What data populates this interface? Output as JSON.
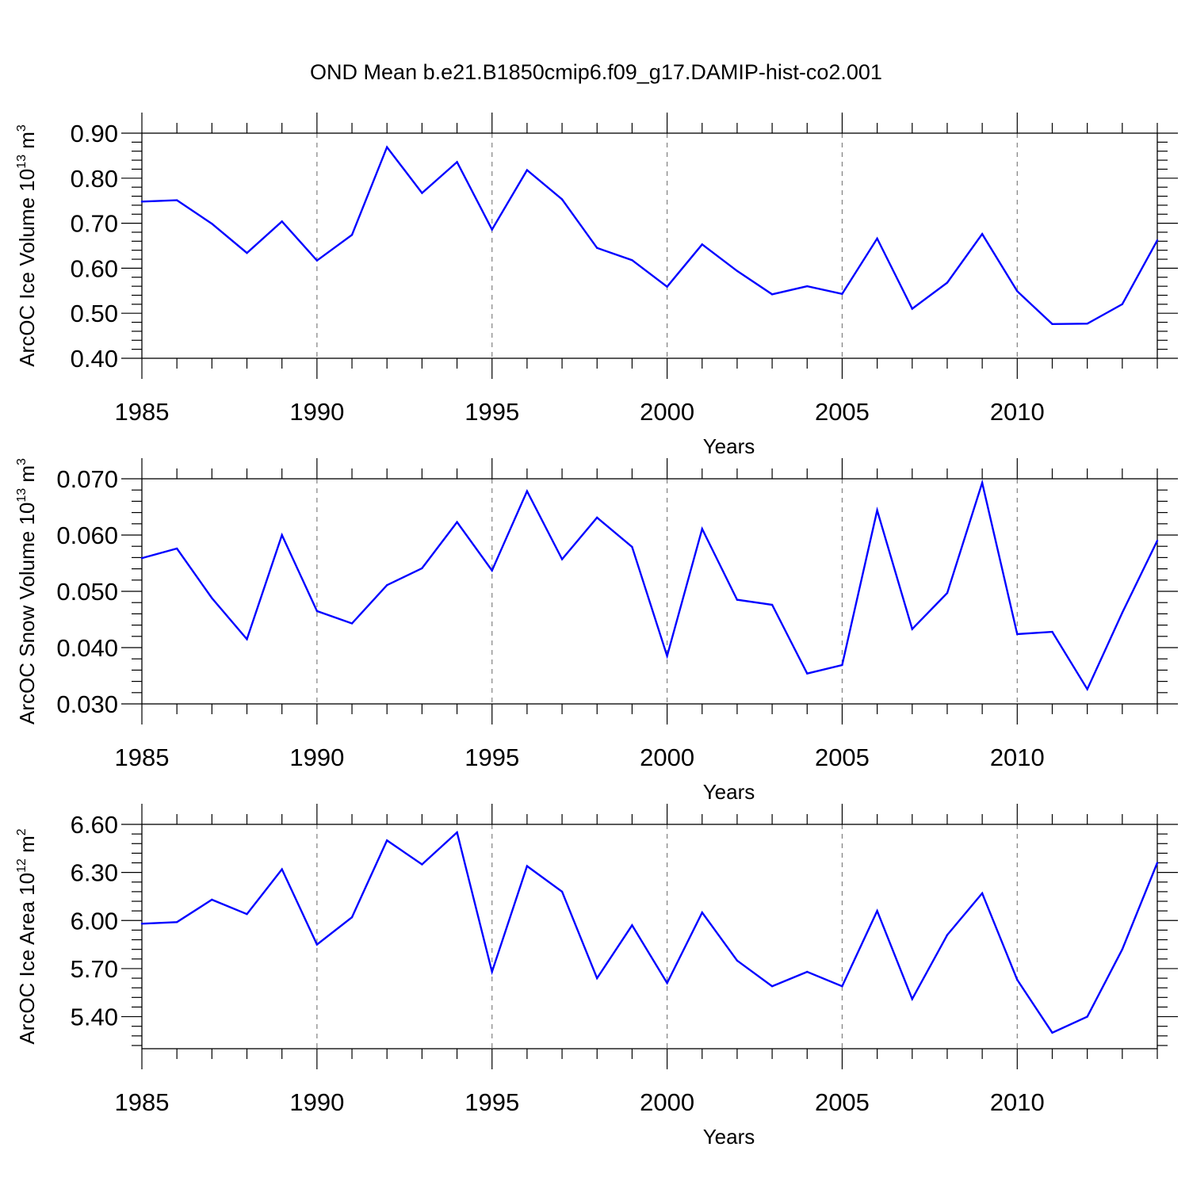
{
  "title": "OND Mean b.e21.B1850cmip6.f09_g17.DAMIP-hist-co2.001",
  "colors": {
    "line": "#0000ff",
    "axes": "#000000",
    "grid": "#808080",
    "background": "#ffffff"
  },
  "chart_data": [
    {
      "type": "line",
      "name": "ice-volume",
      "ylabel": {
        "main": "ArcOC Ice Volume 10",
        "sup": "13",
        "unit": " m",
        "unit_sup": "3"
      },
      "xlabel": "Years",
      "xlim": [
        1985,
        2014
      ],
      "ylim": [
        0.4,
        0.9
      ],
      "yticks": [
        0.4,
        0.5,
        0.6,
        0.7,
        0.8,
        0.9
      ],
      "ytick_labels": [
        "0.40",
        "0.50",
        "0.60",
        "0.70",
        "0.80",
        "0.90"
      ],
      "xticks": [
        1985,
        1990,
        1995,
        2000,
        2005,
        2010
      ],
      "xtick_labels": [
        "1985",
        "1990",
        "1995",
        "2000",
        "2005",
        "2010"
      ],
      "grid": "vertical dashed at major x ticks",
      "x": [
        1985,
        1986,
        1987,
        1988,
        1989,
        1990,
        1991,
        1992,
        1993,
        1994,
        1995,
        1996,
        1997,
        1998,
        1999,
        2000,
        2001,
        2002,
        2003,
        2004,
        2005,
        2006,
        2007,
        2008,
        2009,
        2010,
        2011,
        2012,
        2013,
        2014
      ],
      "values": [
        0.748,
        0.751,
        0.699,
        0.634,
        0.704,
        0.617,
        0.674,
        0.869,
        0.767,
        0.836,
        0.686,
        0.818,
        0.753,
        0.645,
        0.618,
        0.559,
        0.653,
        0.594,
        0.542,
        0.56,
        0.543,
        0.666,
        0.51,
        0.568,
        0.676,
        0.549,
        0.476,
        0.477,
        0.52,
        0.662
      ]
    },
    {
      "type": "line",
      "name": "snow-volume",
      "ylabel": {
        "main": "ArcOC Snow Volume 10",
        "sup": "13",
        "unit": " m",
        "unit_sup": "3"
      },
      "xlabel": "Years",
      "xlim": [
        1985,
        2014
      ],
      "ylim": [
        0.03,
        0.07
      ],
      "yticks": [
        0.03,
        0.04,
        0.05,
        0.06,
        0.07
      ],
      "ytick_labels": [
        "0.030",
        "0.040",
        "0.050",
        "0.060",
        "0.070"
      ],
      "xticks": [
        1985,
        1990,
        1995,
        2000,
        2005,
        2010
      ],
      "xtick_labels": [
        "1985",
        "1990",
        "1995",
        "2000",
        "2005",
        "2010"
      ],
      "grid": "vertical dashed at major x ticks",
      "x": [
        1985,
        1986,
        1987,
        1988,
        1989,
        1990,
        1991,
        1992,
        1993,
        1994,
        1995,
        1996,
        1997,
        1998,
        1999,
        2000,
        2001,
        2002,
        2003,
        2004,
        2005,
        2006,
        2007,
        2008,
        2009,
        2010,
        2011,
        2012,
        2013,
        2014
      ],
      "values": [
        0.0559,
        0.0576,
        0.0488,
        0.0415,
        0.06,
        0.0465,
        0.0443,
        0.0511,
        0.0541,
        0.0623,
        0.0537,
        0.0678,
        0.0557,
        0.0631,
        0.0579,
        0.0385,
        0.0611,
        0.0485,
        0.0476,
        0.0354,
        0.0369,
        0.0644,
        0.0433,
        0.0497,
        0.0693,
        0.0424,
        0.0428,
        0.0326,
        0.0462,
        0.059
      ]
    },
    {
      "type": "line",
      "name": "ice-area",
      "ylabel": {
        "main": "ArcOC Ice Area 10",
        "sup": "12",
        "unit": " m",
        "unit_sup": "2"
      },
      "xlabel": "Years",
      "xlim": [
        1985,
        2014
      ],
      "ylim": [
        5.2,
        6.6
      ],
      "yticks": [
        5.4,
        5.7,
        6.0,
        6.3,
        6.6
      ],
      "ytick_labels": [
        "5.40",
        "5.70",
        "6.00",
        "6.30",
        "6.60"
      ],
      "xticks": [
        1985,
        1990,
        1995,
        2000,
        2005,
        2010
      ],
      "xtick_labels": [
        "1985",
        "1990",
        "1995",
        "2000",
        "2005",
        "2010"
      ],
      "grid": "vertical dashed at major x ticks",
      "x": [
        1985,
        1986,
        1987,
        1988,
        1989,
        1990,
        1991,
        1992,
        1993,
        1994,
        1995,
        1996,
        1997,
        1998,
        1999,
        2000,
        2001,
        2002,
        2003,
        2004,
        2005,
        2006,
        2007,
        2008,
        2009,
        2010,
        2011,
        2012,
        2013,
        2014
      ],
      "values": [
        5.98,
        5.99,
        6.13,
        6.04,
        6.32,
        5.85,
        6.02,
        6.5,
        6.35,
        6.55,
        5.68,
        6.34,
        6.18,
        5.64,
        5.97,
        5.61,
        6.05,
        5.75,
        5.59,
        5.68,
        5.59,
        6.06,
        5.51,
        5.91,
        6.17,
        5.63,
        5.3,
        5.4,
        5.82,
        6.36
      ]
    }
  ]
}
